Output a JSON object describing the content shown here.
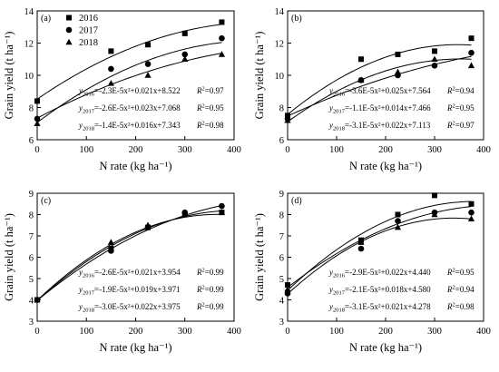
{
  "chart_data": [
    {
      "type": "scatter",
      "panel_label": "(a)",
      "xlabel": "N rate (kg ha⁻¹)",
      "ylabel": "Grain yield (t ha⁻¹)",
      "xlim": [
        0,
        400
      ],
      "ylim": [
        6,
        14
      ],
      "xticks": [
        0,
        100,
        200,
        300,
        400
      ],
      "yticks": [
        6,
        8,
        10,
        12,
        14
      ],
      "legend": {
        "position": "top-left",
        "entries": [
          "2016",
          "2017",
          "2018"
        ]
      },
      "x": [
        0,
        150,
        225,
        300,
        375
      ],
      "series": [
        {
          "name": "2016",
          "marker": "square",
          "values": [
            8.4,
            11.5,
            11.9,
            12.6,
            13.3
          ],
          "fit": {
            "a": -2.3e-05,
            "b": 0.021,
            "c": 8.522
          }
        },
        {
          "name": "2017",
          "marker": "circle",
          "values": [
            7.3,
            10.4,
            10.7,
            11.3,
            12.3
          ],
          "fit": {
            "a": -2.6e-05,
            "b": 0.023,
            "c": 7.068
          }
        },
        {
          "name": "2018",
          "marker": "triangle",
          "values": [
            7.0,
            9.5,
            10.0,
            11.0,
            11.3
          ],
          "fit": {
            "a": -1.4e-05,
            "b": 0.016,
            "c": 7.343
          }
        }
      ],
      "equations": [
        {
          "year": "2016",
          "expr": "=-2.3E-5x²+0.021x+8.522",
          "r2": "=0.97"
        },
        {
          "year": "2017",
          "expr": "=-2.6E-5x²+0.023x+7.068",
          "r2": "=0.95"
        },
        {
          "year": "2018",
          "expr": "=-1.4E-5x²+0.016x+7.343",
          "r2": "=0.98"
        }
      ],
      "equation_position": "bottom-right"
    },
    {
      "type": "scatter",
      "panel_label": "(b)",
      "xlabel": "N rate (kg ha⁻¹)",
      "ylabel": "Grain yield (t ha⁻¹)",
      "xlim": [
        0,
        400
      ],
      "ylim": [
        6,
        14
      ],
      "xticks": [
        0,
        100,
        200,
        300,
        400
      ],
      "yticks": [
        6,
        8,
        10,
        12,
        14
      ],
      "x": [
        0,
        150,
        225,
        300,
        375
      ],
      "series": [
        {
          "name": "2016",
          "marker": "square",
          "values": [
            7.5,
            11.0,
            11.3,
            11.5,
            12.3
          ],
          "fit": {
            "a": -3.6e-05,
            "b": 0.025,
            "c": 7.564
          }
        },
        {
          "name": "2017",
          "marker": "circle",
          "values": [
            7.3,
            9.7,
            10.0,
            10.6,
            11.4
          ],
          "fit": {
            "a": -1.1e-05,
            "b": 0.014,
            "c": 7.466
          }
        },
        {
          "name": "2018",
          "marker": "triangle",
          "values": [
            7.2,
            9.7,
            10.2,
            11.0,
            10.6
          ],
          "fit": {
            "a": -3.1e-05,
            "b": 0.022,
            "c": 7.113
          }
        }
      ],
      "equations": [
        {
          "year": "2016",
          "expr": "=-3.6E-5x²+0.025x+7.564",
          "r2": "=0.94"
        },
        {
          "year": "2017",
          "expr": "=-1.1E-5x²+0.014x+7.466",
          "r2": "=0.95"
        },
        {
          "year": "2018",
          "expr": "=-3.1E-5x²+0.022x+7.113",
          "r2": "=0.97"
        }
      ],
      "equation_position": "bottom-right"
    },
    {
      "type": "scatter",
      "panel_label": "(c)",
      "xlabel": "N rate (kg ha⁻¹)",
      "ylabel": "Grain yield (t ha⁻¹)",
      "xlim": [
        0,
        400
      ],
      "ylim": [
        3,
        9
      ],
      "xticks": [
        0,
        100,
        200,
        300,
        400
      ],
      "yticks": [
        3,
        4,
        5,
        6,
        7,
        8,
        9
      ],
      "x": [
        0,
        150,
        225,
        300,
        375
      ],
      "series": [
        {
          "name": "2016",
          "marker": "square",
          "values": [
            4.0,
            6.4,
            7.4,
            8.0,
            8.1
          ],
          "fit": {
            "a": -2.6e-05,
            "b": 0.021,
            "c": 3.954
          }
        },
        {
          "name": "2017",
          "marker": "circle",
          "values": [
            4.0,
            6.3,
            7.4,
            8.1,
            8.4
          ],
          "fit": {
            "a": -1.9e-05,
            "b": 0.019,
            "c": 3.971
          }
        },
        {
          "name": "2018",
          "marker": "triangle",
          "values": [
            4.0,
            6.7,
            7.5,
            8.0,
            8.1
          ],
          "fit": {
            "a": -3e-05,
            "b": 0.022,
            "c": 3.975
          }
        }
      ],
      "equations": [
        {
          "year": "2016",
          "expr": "=-2.6E-5x²+0.021x+3.954",
          "r2": "=0.99"
        },
        {
          "year": "2017",
          "expr": "=-1.9E-5x²+0.019x+3.971",
          "r2": "=0.99"
        },
        {
          "year": "2018",
          "expr": "=-3.0E-5x²+0.022x+3.975",
          "r2": "=0.99"
        }
      ],
      "equation_position": "bottom-right"
    },
    {
      "type": "scatter",
      "panel_label": "(d)",
      "xlabel": "N rate (kg ha⁻¹)",
      "ylabel": "Grain yield (t ha⁻¹)",
      "xlim": [
        0,
        400
      ],
      "ylim": [
        3,
        9
      ],
      "xticks": [
        0,
        100,
        200,
        300,
        400
      ],
      "yticks": [
        3,
        4,
        5,
        6,
        7,
        8,
        9
      ],
      "x": [
        0,
        150,
        225,
        300,
        375
      ],
      "series": [
        {
          "name": "2016",
          "marker": "square",
          "values": [
            4.7,
            6.8,
            8.0,
            8.9,
            8.5
          ],
          "fit": {
            "a": -2.9e-05,
            "b": 0.022,
            "c": 4.44
          }
        },
        {
          "name": "2017",
          "marker": "circle",
          "values": [
            4.3,
            6.4,
            7.7,
            8.1,
            8.1
          ],
          "fit": {
            "a": -2.1e-05,
            "b": 0.018,
            "c": 4.58
          }
        },
        {
          "name": "2018",
          "marker": "triangle",
          "values": [
            4.5,
            6.7,
            7.4,
            8.0,
            7.8
          ],
          "fit": {
            "a": -3.1e-05,
            "b": 0.021,
            "c": 4.278
          }
        }
      ],
      "equations": [
        {
          "year": "2016",
          "expr": "=-2.9E-5x²+0.022x+4.440",
          "r2": "=0.95"
        },
        {
          "year": "2017",
          "expr": "=-2.1E-5x²+0.018x+4.580",
          "r2": "=0.94"
        },
        {
          "year": "2018",
          "expr": "=-3.1E-5x²+0.021x+4.278",
          "r2": "=0.98"
        }
      ],
      "equation_position": "bottom-right"
    }
  ]
}
